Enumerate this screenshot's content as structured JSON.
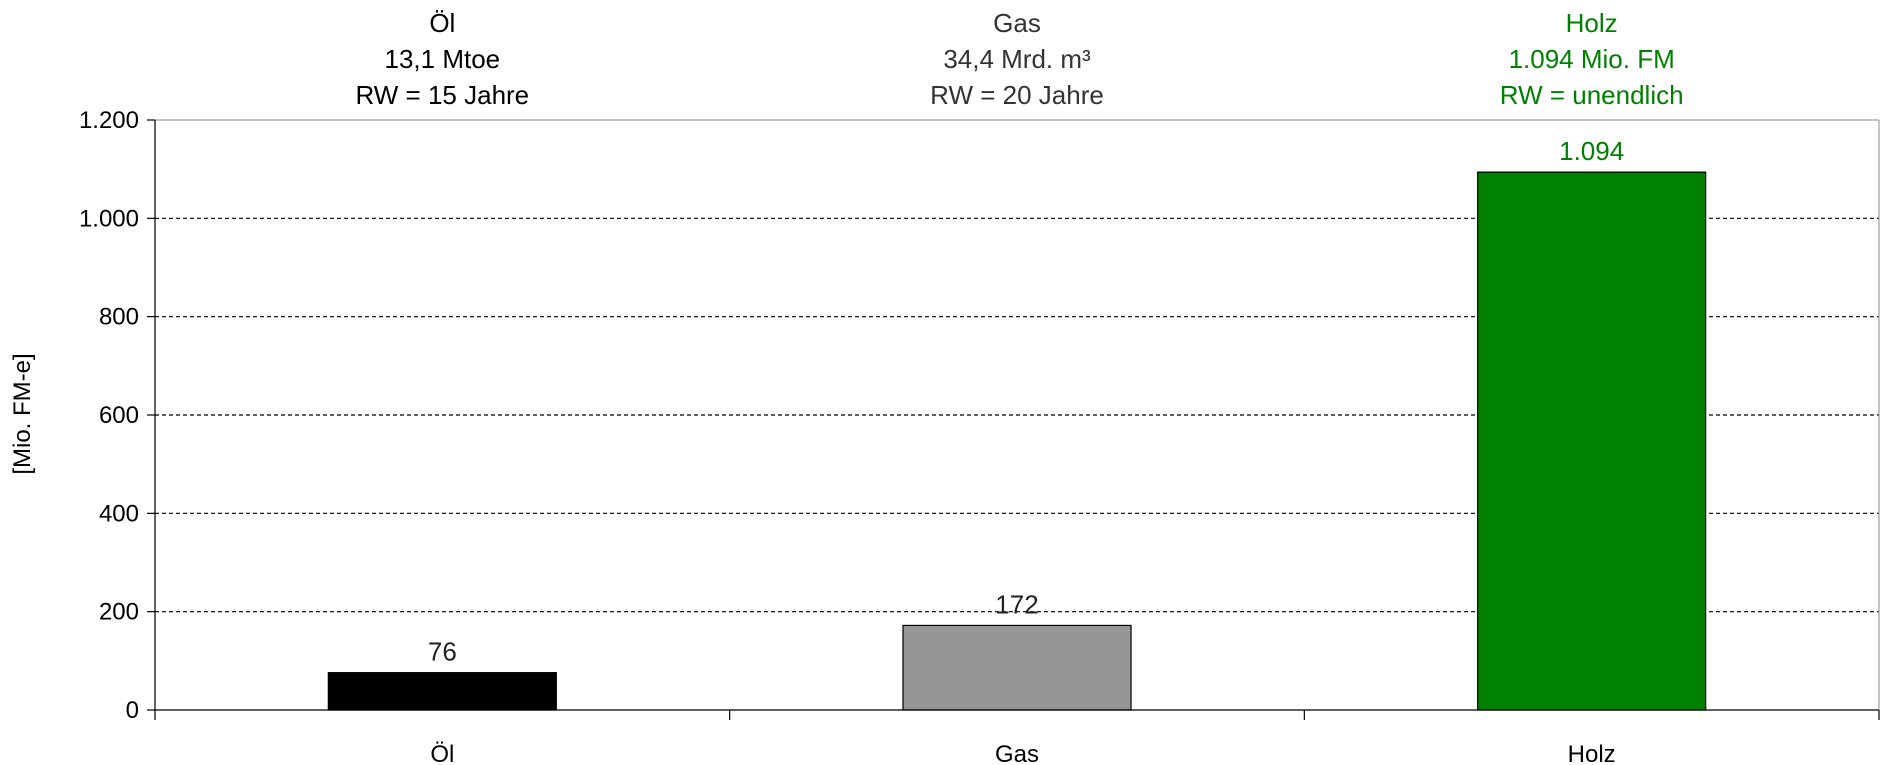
{
  "chart_data": {
    "type": "bar",
    "categories": [
      "Öl",
      "Gas",
      "Holz"
    ],
    "values": [
      76,
      172,
      1094
    ],
    "value_labels": [
      "76",
      "172",
      "1.094"
    ],
    "bar_colors": [
      "#000000",
      "#969696",
      "#008000"
    ],
    "ylabel": "[Mio. FM-e]",
    "ylim": [
      0,
      1200
    ],
    "yticks": [
      0,
      200,
      400,
      600,
      800,
      1000,
      1200
    ],
    "ytick_labels": [
      "0",
      "200",
      "400",
      "600",
      "800",
      "1.000",
      "1.200"
    ],
    "grid": "horizontal dashed",
    "header_annotations": [
      {
        "lines": [
          "Öl",
          "13,1 Mtoe",
          "RW = 15 Jahre"
        ],
        "color": "#000000"
      },
      {
        "lines": [
          "Gas",
          "34,4 Mrd. m³",
          "RW = 20 Jahre"
        ],
        "color": "#333333"
      },
      {
        "lines": [
          "Holz",
          "1.094 Mio. FM",
          "RW = unendlich"
        ],
        "color": "#008000"
      }
    ]
  }
}
